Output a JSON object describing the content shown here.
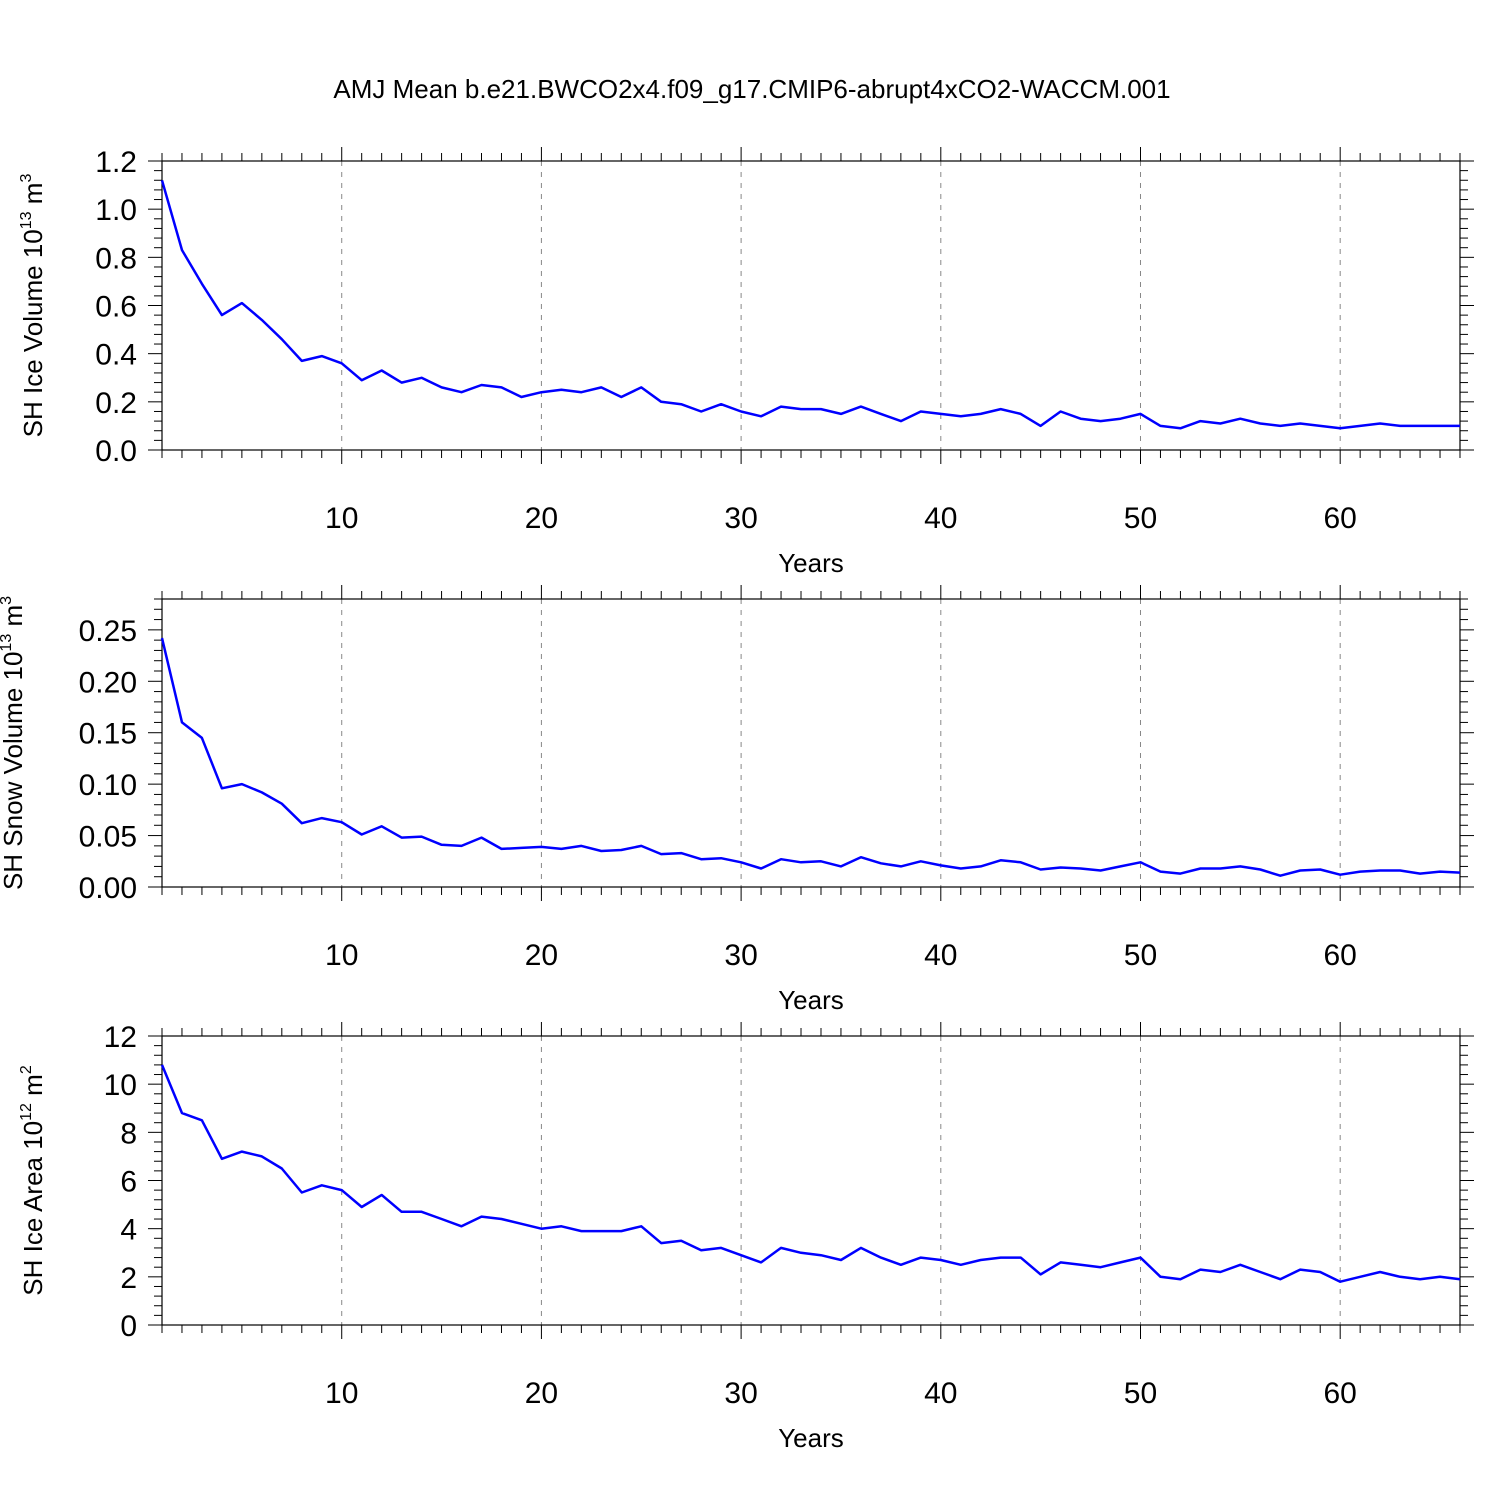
{
  "title": "AMJ Mean b.e21.BWCO2x4.f09_g17.CMIP6-abrupt4xCO2-WACCM.001",
  "colors": {
    "line": "#0000ff",
    "grid": "#888888",
    "axis": "#000000"
  },
  "chart_data": [
    {
      "type": "line",
      "xlabel": "Years",
      "ylabel": {
        "base": "SH Ice Volume 10",
        "exp": "13",
        "unit": " m",
        "unit_exp": "3"
      },
      "xlim": [
        1,
        66
      ],
      "ylim": [
        0,
        1.2
      ],
      "xticks": [
        10,
        20,
        30,
        40,
        50,
        60
      ],
      "yticks": [
        "0.0",
        "0.2",
        "0.4",
        "0.6",
        "0.8",
        "1.0",
        "1.2"
      ],
      "grid": "vertical-dashed",
      "series": [
        {
          "x": [
            1,
            2,
            3,
            4,
            5,
            6,
            7,
            8,
            9,
            10,
            11,
            12,
            13,
            14,
            15,
            16,
            17,
            18,
            19,
            20,
            21,
            22,
            23,
            24,
            25,
            26,
            27,
            28,
            29,
            30,
            31,
            32,
            33,
            34,
            35,
            36,
            37,
            38,
            39,
            40,
            41,
            42,
            43,
            44,
            45,
            46,
            47,
            48,
            49,
            50,
            51,
            52,
            53,
            54,
            55,
            56,
            57,
            58,
            59,
            60,
            61,
            62,
            63,
            64,
            65,
            66
          ],
          "y": [
            1.12,
            0.83,
            0.69,
            0.56,
            0.61,
            0.54,
            0.46,
            0.37,
            0.39,
            0.36,
            0.29,
            0.33,
            0.28,
            0.3,
            0.26,
            0.24,
            0.27,
            0.26,
            0.22,
            0.24,
            0.25,
            0.24,
            0.26,
            0.22,
            0.26,
            0.2,
            0.19,
            0.16,
            0.19,
            0.16,
            0.14,
            0.18,
            0.17,
            0.17,
            0.15,
            0.18,
            0.15,
            0.12,
            0.16,
            0.15,
            0.14,
            0.15,
            0.17,
            0.15,
            0.1,
            0.16,
            0.13,
            0.12,
            0.13,
            0.15,
            0.1,
            0.09,
            0.12,
            0.11,
            0.13,
            0.11,
            0.1,
            0.11,
            0.1,
            0.09,
            0.1,
            0.11,
            0.1,
            0.1,
            0.1,
            0.1
          ]
        }
      ]
    },
    {
      "type": "line",
      "xlabel": "Years",
      "ylabel": {
        "base": "SH Snow Volume 10",
        "exp": "13",
        "unit": " m",
        "unit_exp": "3"
      },
      "xlim": [
        1,
        66
      ],
      "ylim": [
        0,
        0.28
      ],
      "xticks": [
        10,
        20,
        30,
        40,
        50,
        60
      ],
      "yticks": [
        "0.00",
        "0.05",
        "0.10",
        "0.15",
        "0.20",
        "0.25"
      ],
      "grid": "vertical-dashed",
      "series": [
        {
          "x": [
            1,
            2,
            3,
            4,
            5,
            6,
            7,
            8,
            9,
            10,
            11,
            12,
            13,
            14,
            15,
            16,
            17,
            18,
            19,
            20,
            21,
            22,
            23,
            24,
            25,
            26,
            27,
            28,
            29,
            30,
            31,
            32,
            33,
            34,
            35,
            36,
            37,
            38,
            39,
            40,
            41,
            42,
            43,
            44,
            45,
            46,
            47,
            48,
            49,
            50,
            51,
            52,
            53,
            54,
            55,
            56,
            57,
            58,
            59,
            60,
            61,
            62,
            63,
            64,
            65,
            66
          ],
          "y": [
            0.242,
            0.16,
            0.145,
            0.096,
            0.1,
            0.092,
            0.081,
            0.062,
            0.067,
            0.063,
            0.051,
            0.059,
            0.048,
            0.049,
            0.041,
            0.04,
            0.048,
            0.037,
            0.038,
            0.039,
            0.037,
            0.04,
            0.035,
            0.036,
            0.04,
            0.032,
            0.033,
            0.027,
            0.028,
            0.024,
            0.018,
            0.027,
            0.024,
            0.025,
            0.02,
            0.029,
            0.023,
            0.02,
            0.025,
            0.021,
            0.018,
            0.02,
            0.026,
            0.024,
            0.017,
            0.019,
            0.018,
            0.016,
            0.02,
            0.024,
            0.015,
            0.013,
            0.018,
            0.018,
            0.02,
            0.017,
            0.011,
            0.016,
            0.017,
            0.012,
            0.015,
            0.016,
            0.016,
            0.013,
            0.015,
            0.014
          ]
        }
      ]
    },
    {
      "type": "line",
      "xlabel": "Years",
      "ylabel": {
        "base": "SH Ice Area 10",
        "exp": "12",
        "unit": " m",
        "unit_exp": "2"
      },
      "xlim": [
        1,
        66
      ],
      "ylim": [
        0,
        12
      ],
      "xticks": [
        10,
        20,
        30,
        40,
        50,
        60
      ],
      "yticks": [
        "0",
        "2",
        "4",
        "6",
        "8",
        "10",
        "12"
      ],
      "grid": "vertical-dashed",
      "series": [
        {
          "x": [
            1,
            2,
            3,
            4,
            5,
            6,
            7,
            8,
            9,
            10,
            11,
            12,
            13,
            14,
            15,
            16,
            17,
            18,
            19,
            20,
            21,
            22,
            23,
            24,
            25,
            26,
            27,
            28,
            29,
            30,
            31,
            32,
            33,
            34,
            35,
            36,
            37,
            38,
            39,
            40,
            41,
            42,
            43,
            44,
            45,
            46,
            47,
            48,
            49,
            50,
            51,
            52,
            53,
            54,
            55,
            56,
            57,
            58,
            59,
            60,
            61,
            62,
            63,
            64,
            65,
            66
          ],
          "y": [
            10.8,
            8.8,
            8.5,
            6.9,
            7.2,
            7.0,
            6.5,
            5.5,
            5.8,
            5.6,
            4.9,
            5.4,
            4.7,
            4.7,
            4.4,
            4.1,
            4.5,
            4.4,
            4.2,
            4.0,
            4.1,
            3.9,
            3.9,
            3.9,
            4.1,
            3.4,
            3.5,
            3.1,
            3.2,
            2.9,
            2.6,
            3.2,
            3.0,
            2.9,
            2.7,
            3.2,
            2.8,
            2.5,
            2.8,
            2.7,
            2.5,
            2.7,
            2.8,
            2.8,
            2.1,
            2.6,
            2.5,
            2.4,
            2.6,
            2.8,
            2.0,
            1.9,
            2.3,
            2.2,
            2.5,
            2.2,
            1.9,
            2.3,
            2.2,
            1.8,
            2.0,
            2.2,
            2.0,
            1.9,
            2.0,
            1.9
          ]
        }
      ]
    }
  ]
}
